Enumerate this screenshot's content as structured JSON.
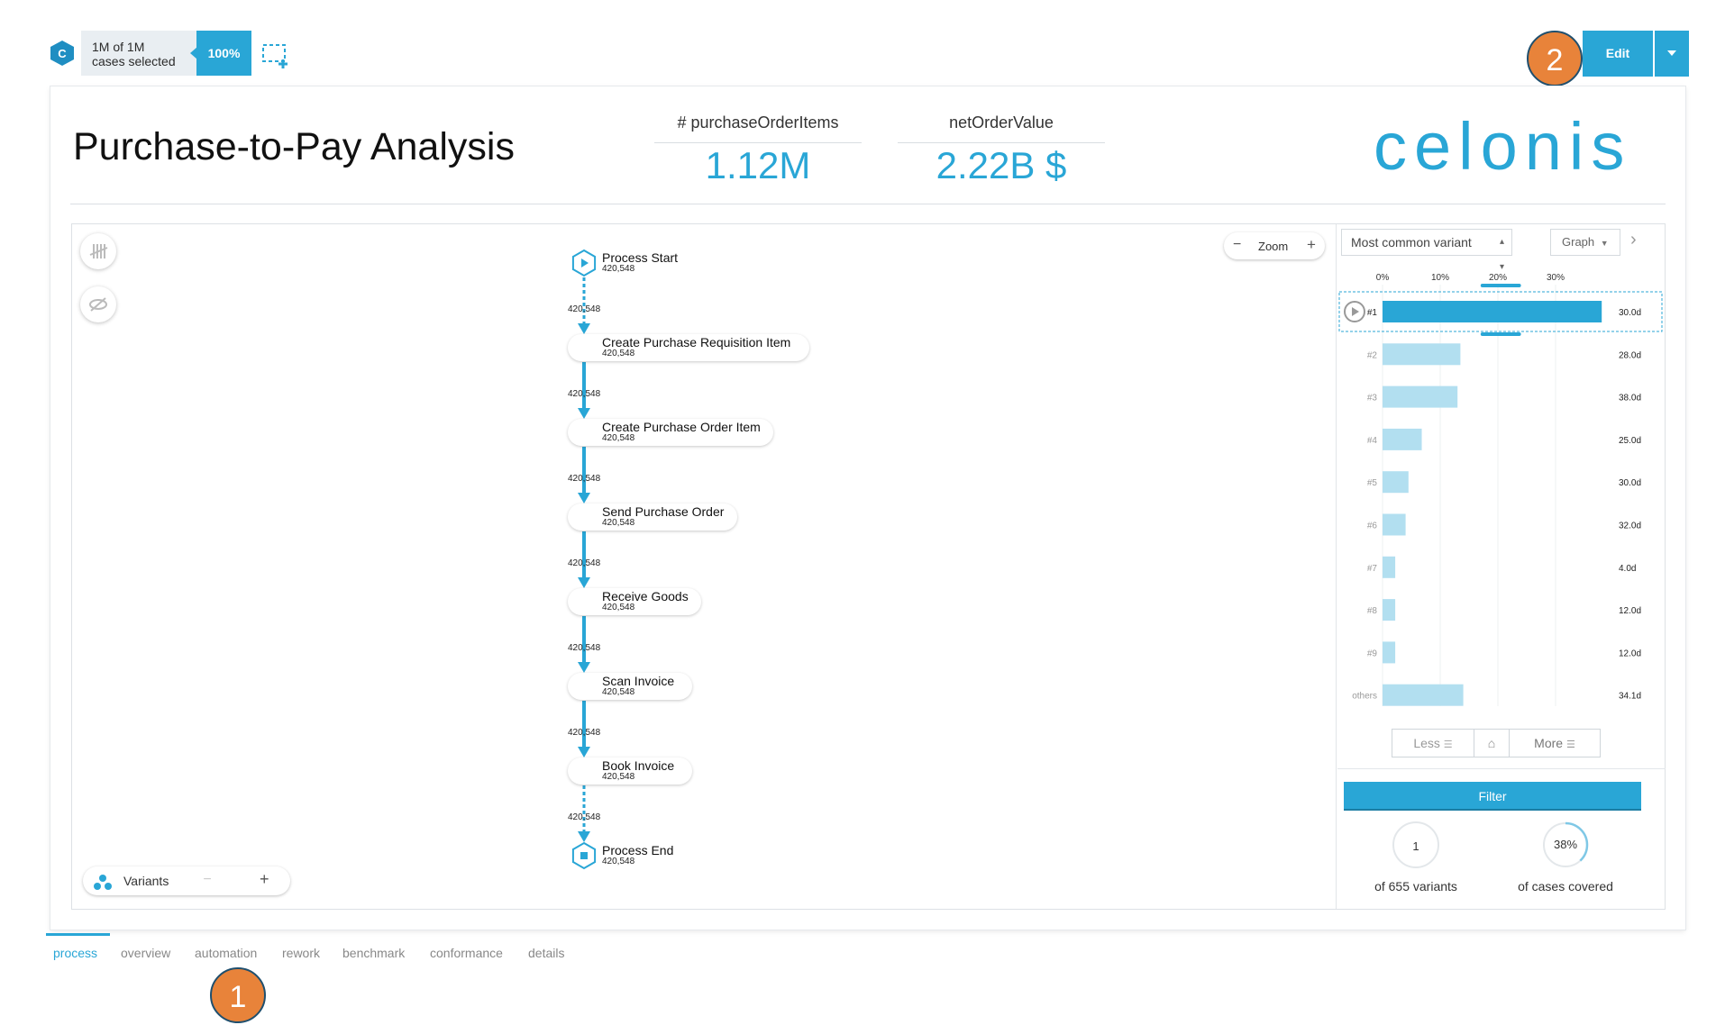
{
  "topbar": {
    "cases_line1": "1M of 1M",
    "cases_line2": "cases selected",
    "selection_percent": "100%",
    "edit_label": "Edit",
    "callout_top": "2"
  },
  "header": {
    "title": "Purchase-to-Pay Analysis",
    "kpis": [
      {
        "label": "# purchaseOrderItems",
        "value": "1.12M"
      },
      {
        "label": "netOrderValue",
        "value": "2.22B $"
      }
    ],
    "brand": "celonis"
  },
  "graph": {
    "zoom_label": "Zoom",
    "variants_label": "Variants",
    "nodes": [
      {
        "name": "Process Start",
        "count": "420,548",
        "kind": "start"
      },
      {
        "name": "Create Purchase Requisition Item",
        "count": "420,548",
        "kind": "activity"
      },
      {
        "name": "Create Purchase Order Item",
        "count": "420,548",
        "kind": "activity"
      },
      {
        "name": "Send Purchase Order",
        "count": "420,548",
        "kind": "activity"
      },
      {
        "name": "Receive Goods",
        "count": "420,548",
        "kind": "activity"
      },
      {
        "name": "Scan Invoice",
        "count": "420,548",
        "kind": "activity"
      },
      {
        "name": "Book Invoice",
        "count": "420,548",
        "kind": "activity"
      },
      {
        "name": "Process End",
        "count": "420,548",
        "kind": "end"
      }
    ],
    "edge_counts": [
      "420,548",
      "420,548",
      "420,548",
      "420,548",
      "420,548",
      "420,548",
      "420,548"
    ]
  },
  "variants": {
    "select_value": "Most common variant",
    "view_value": "Graph",
    "axis_ticks": [
      "0%",
      "10%",
      "20%",
      "30%"
    ],
    "less_label": "Less",
    "more_label": "More",
    "filter_label": "Filter",
    "variants_count": "1",
    "variants_caption": "of 655 variants",
    "coverage_value": "38%",
    "coverage_fraction": 0.38,
    "coverage_caption": "of cases covered",
    "chart_data": {
      "type": "bar",
      "orientation": "horizontal",
      "categories": [
        "#1",
        "#2",
        "#3",
        "#4",
        "#5",
        "#6",
        "#7",
        "#8",
        "#9",
        "others"
      ],
      "values": [
        38,
        13.5,
        13,
        6.8,
        4.5,
        4,
        2.2,
        2.2,
        2.2,
        14
      ],
      "labels": [
        "30.0d",
        "28.0d",
        "38.0d",
        "25.0d",
        "30.0d",
        "32.0d",
        "4.0d",
        "12.0d",
        "12.0d",
        "34.1d"
      ],
      "xlim": [
        0,
        40
      ],
      "selected_index": 0,
      "colors": {
        "selected": "#29a6d6",
        "default": "#b2dff0"
      }
    }
  },
  "tabs": [
    {
      "label": "process",
      "active": true
    },
    {
      "label": "overview",
      "active": false
    },
    {
      "label": "automation",
      "active": false
    },
    {
      "label": "rework",
      "active": false
    },
    {
      "label": "benchmark",
      "active": false
    },
    {
      "label": "conformance",
      "active": false
    },
    {
      "label": "details",
      "active": false
    }
  ],
  "callout_bottom": "1"
}
